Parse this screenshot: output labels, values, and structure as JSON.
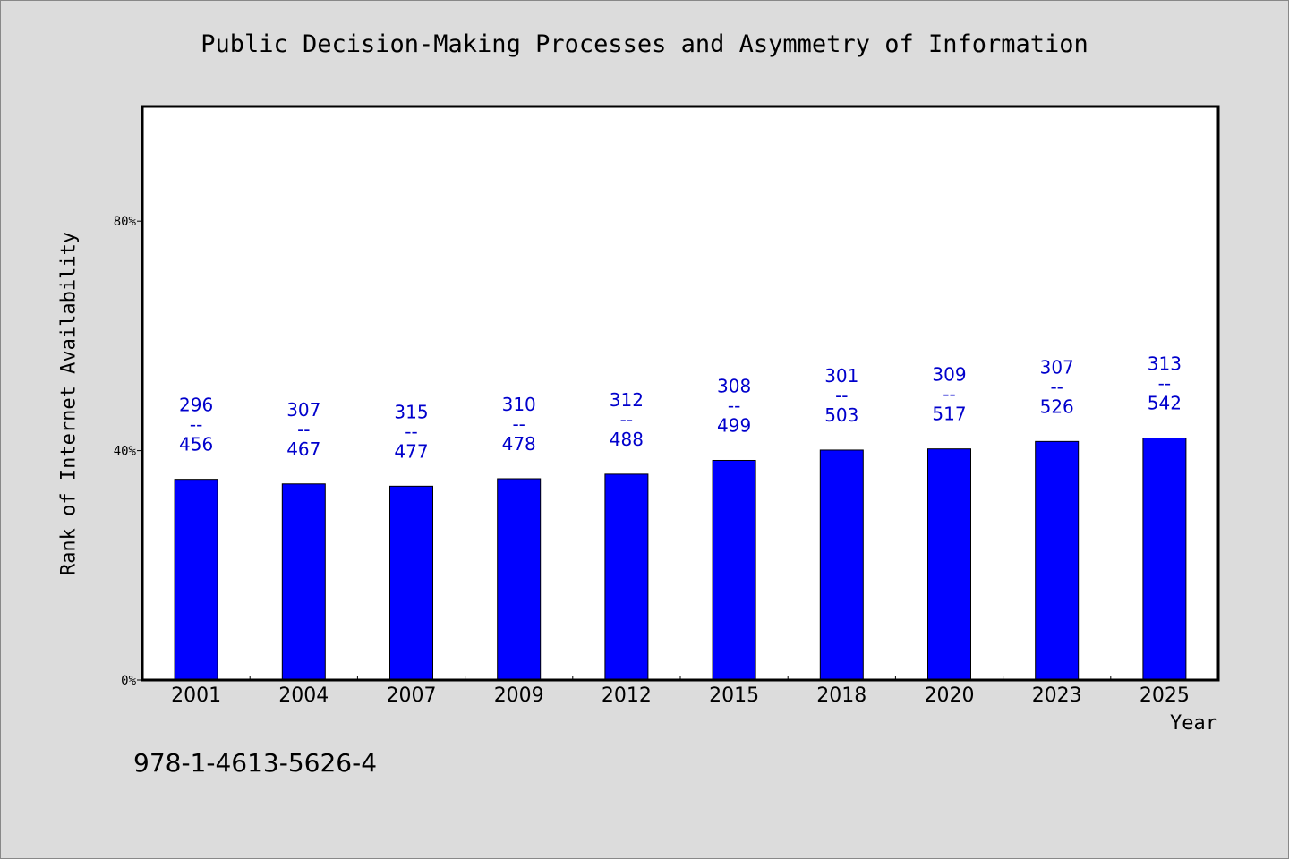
{
  "chart_data": {
    "type": "bar",
    "title": "Public Decision-Making Processes and Asymmetry of Information",
    "xlabel": "Year",
    "ylabel": "Rank of Internet Availability",
    "y_tick_labels": [
      "0%",
      "40%",
      "80%"
    ],
    "y_ticks": [
      0,
      40,
      80
    ],
    "ylim": [
      0,
      100
    ],
    "categories": [
      "2001",
      "2004",
      "2007",
      "2009",
      "2012",
      "2015",
      "2018",
      "2020",
      "2023",
      "2025"
    ],
    "values": [
      35.0,
      34.2,
      33.8,
      35.1,
      35.9,
      38.3,
      40.1,
      40.3,
      41.6,
      42.2
    ],
    "label_top": [
      "296",
      "307",
      "315",
      "310",
      "312",
      "308",
      "301",
      "309",
      "307",
      "313"
    ],
    "label_sep": "--",
    "label_bottom": [
      "456",
      "467",
      "477",
      "478",
      "488",
      "499",
      "503",
      "517",
      "526",
      "542"
    ],
    "bar_color": "#0000ff",
    "label_color": "#0000cc",
    "grid": false,
    "legend": "none"
  },
  "footer": {
    "isbn": "978-1-4613-5626-4"
  }
}
